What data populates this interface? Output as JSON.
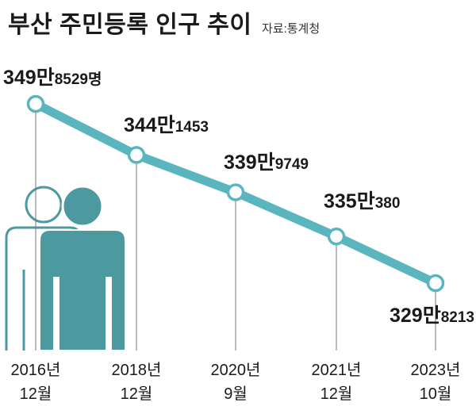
{
  "header": {
    "title": "부산 주민등록 인구 추이",
    "source": "자료:통계청"
  },
  "chart_data": {
    "type": "line",
    "title": "부산 주민등록 인구 추이",
    "source": "자료:통계청",
    "categories": [
      "2016년 12월",
      "2018년 12월",
      "2020년 9월",
      "2021년 12월",
      "2023년 10월"
    ],
    "tick_labels": [
      [
        "2016년",
        "12월"
      ],
      [
        "2018년",
        "12월"
      ],
      [
        "2020년",
        "9월"
      ],
      [
        "2021년",
        "12월"
      ],
      [
        "2023년",
        "10월"
      ]
    ],
    "values": [
      3498529,
      3441453,
      3399749,
      3350380,
      3298213
    ],
    "data_labels": [
      [
        "349만",
        "8529명"
      ],
      [
        "344만",
        "1453"
      ],
      [
        "339만",
        "9749"
      ],
      [
        "335만",
        "380"
      ],
      [
        "329만",
        "8213"
      ]
    ],
    "colors": {
      "line": "#5bb5bf",
      "marker_fill": "#ffffff",
      "figure_front": "#4c9aa0",
      "figure_back_stroke": "#4c9aa0",
      "gridline": "#777777"
    }
  }
}
